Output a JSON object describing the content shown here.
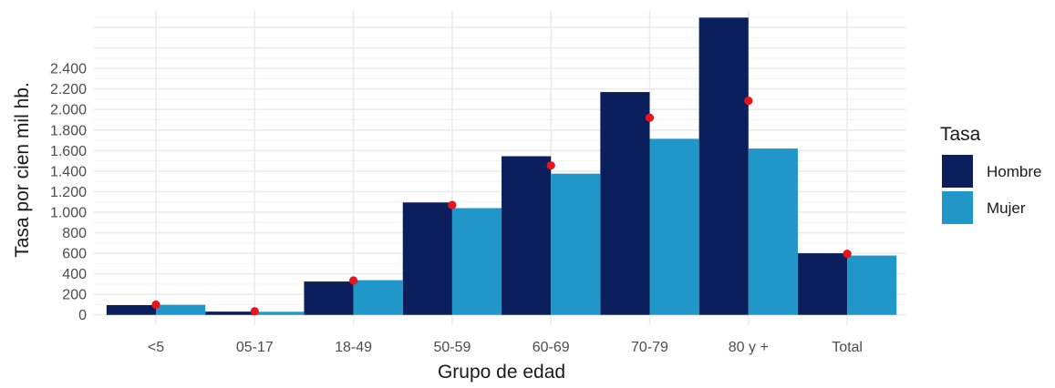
{
  "chart_data": {
    "type": "bar",
    "xlabel": "Grupo de edad",
    "ylabel": "Tasa por cien mil hb.",
    "categories": [
      "<5",
      "05-17",
      "18-49",
      "50-59",
      "60-69",
      "70-79",
      "80 y +",
      "Total"
    ],
    "series": [
      {
        "name": "Hombre",
        "color": "#0b1f5c",
        "values": [
          95,
          32,
          325,
          1095,
          1545,
          2170,
          2895,
          600
        ]
      },
      {
        "name": "Mujer",
        "color": "#2196c8",
        "values": [
          98,
          30,
          338,
          1040,
          1375,
          1715,
          1620,
          578
        ]
      }
    ],
    "points": {
      "color": "#e8141c",
      "values": [
        100,
        35,
        335,
        1070,
        1455,
        1920,
        2085,
        595
      ]
    },
    "yticks": [
      0,
      200,
      400,
      600,
      800,
      1000,
      1200,
      1400,
      1600,
      1800,
      2000,
      2200,
      2400
    ],
    "ytick_labels": [
      "0",
      "200",
      "400",
      "600",
      "800",
      "1.000",
      "1.200",
      "1.400",
      "1.600",
      "1.800",
      "2.000",
      "2.200",
      "2.400"
    ],
    "ylim": [
      -100,
      2960
    ],
    "grid": true,
    "legend": {
      "title": "Tasa",
      "position": "right"
    }
  }
}
